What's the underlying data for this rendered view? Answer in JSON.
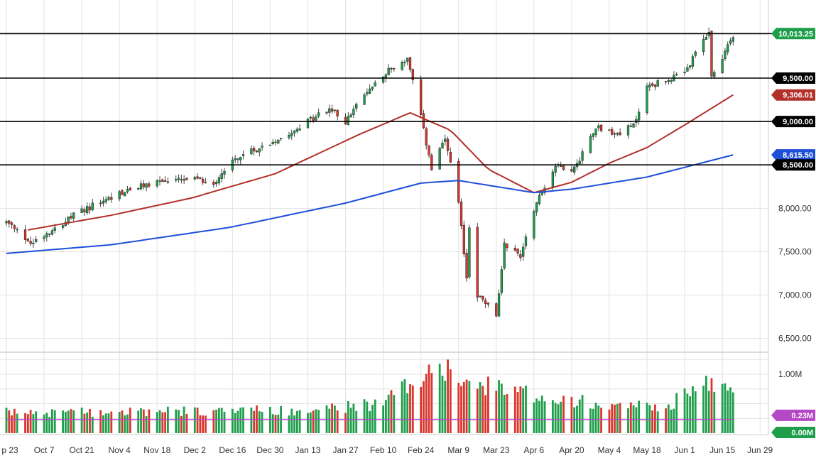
{
  "chart_data": {
    "type": "candlestick",
    "price_axis": {
      "range": [
        6350,
        10400
      ],
      "ticks": [
        {
          "value": 8000,
          "label": "8,000.00"
        },
        {
          "value": 7500,
          "label": "7,500.00"
        },
        {
          "value": 7000,
          "label": "7,000.00"
        },
        {
          "value": 6500,
          "label": "6,500.00"
        }
      ]
    },
    "volume_axis": {
      "range": [
        0,
        1.35
      ],
      "ticks": [
        {
          "value": 1.0,
          "label": "1.00M"
        }
      ]
    },
    "x_ticks": [
      "p 23",
      "Oct 7",
      "Oct 21",
      "Nov 4",
      "Nov 18",
      "Dec 2",
      "Dec 16",
      "Dec 30",
      "Jan 13",
      "Jan 27",
      "Feb 10",
      "Feb 24",
      "Mar 9",
      "Mar 23",
      "Apr 6",
      "Apr 20",
      "May 4",
      "May 18",
      "Jun 1",
      "Jun 15",
      "Jun 29"
    ],
    "horizontal_lines": [
      10013.25,
      9500,
      9000,
      8500
    ],
    "price_tags": [
      {
        "value": 10013.25,
        "label": "10,013.25",
        "color": "#1e9e4a"
      },
      {
        "value": 9500,
        "label": "9,500.00",
        "color": "#000000"
      },
      {
        "value": 9306.01,
        "label": "9,306.01",
        "color": "#b23028"
      },
      {
        "value": 9000,
        "label": "9,000.00",
        "color": "#000000"
      },
      {
        "value": 8615.5,
        "label": "8,615.50",
        "color": "#1d4fd8"
      },
      {
        "value": 8500,
        "label": "8,500.00",
        "color": "#000000"
      }
    ],
    "volume_tags": [
      {
        "value": 0.23,
        "label": "0.23M",
        "color": "#b548c6"
      },
      {
        "value": 0.0,
        "label": "0.00M",
        "color": "#1e9e4a"
      }
    ],
    "anchors": [
      {
        "d": "2019-09-23",
        "c": 7840
      },
      {
        "d": "2019-10-02",
        "c": 7600
      },
      {
        "d": "2019-10-07",
        "c": 7700
      },
      {
        "d": "2019-10-21",
        "c": 7970
      },
      {
        "d": "2019-11-04",
        "c": 8170
      },
      {
        "d": "2019-11-18",
        "c": 8310
      },
      {
        "d": "2019-12-02",
        "c": 8330
      },
      {
        "d": "2019-12-09",
        "c": 8290
      },
      {
        "d": "2019-12-16",
        "c": 8560
      },
      {
        "d": "2019-12-30",
        "c": 8750
      },
      {
        "d": "2020-01-13",
        "c": 9000
      },
      {
        "d": "2020-01-21",
        "c": 9150
      },
      {
        "d": "2020-01-27",
        "c": 9000
      },
      {
        "d": "2020-02-03",
        "c": 9300
      },
      {
        "d": "2020-02-10",
        "c": 9550
      },
      {
        "d": "2020-02-19",
        "c": 9720
      },
      {
        "d": "2020-02-24",
        "c": 9050
      },
      {
        "d": "2020-02-28",
        "c": 8450
      },
      {
        "d": "2020-03-04",
        "c": 8800
      },
      {
        "d": "2020-03-09",
        "c": 8050
      },
      {
        "d": "2020-03-12",
        "c": 7200
      },
      {
        "d": "2020-03-13",
        "c": 7800
      },
      {
        "d": "2020-03-16",
        "c": 7000
      },
      {
        "d": "2020-03-20",
        "c": 6880
      },
      {
        "d": "2020-03-23",
        "c": 6740
      },
      {
        "d": "2020-03-26",
        "c": 7600
      },
      {
        "d": "2020-04-01",
        "c": 7450
      },
      {
        "d": "2020-04-06",
        "c": 8000
      },
      {
        "d": "2020-04-14",
        "c": 8500
      },
      {
        "d": "2020-04-21",
        "c": 8450
      },
      {
        "d": "2020-04-29",
        "c": 8950
      },
      {
        "d": "2020-05-06",
        "c": 8850
      },
      {
        "d": "2020-05-13",
        "c": 8950
      },
      {
        "d": "2020-05-18",
        "c": 9400
      },
      {
        "d": "2020-06-01",
        "c": 9550
      },
      {
        "d": "2020-06-10",
        "c": 10050
      },
      {
        "d": "2020-06-11",
        "c": 9500
      },
      {
        "d": "2020-06-15",
        "c": 9750
      },
      {
        "d": "2020-06-19",
        "c": 10000
      }
    ],
    "ma_50": [
      {
        "d": "2019-10-01",
        "v": 7750
      },
      {
        "d": "2019-11-01",
        "v": 7920
      },
      {
        "d": "2019-12-01",
        "v": 8120
      },
      {
        "d": "2020-01-01",
        "v": 8400
      },
      {
        "d": "2020-02-01",
        "v": 8850
      },
      {
        "d": "2020-02-20",
        "v": 9100
      },
      {
        "d": "2020-03-06",
        "v": 8900
      },
      {
        "d": "2020-03-20",
        "v": 8450
      },
      {
        "d": "2020-04-06",
        "v": 8180
      },
      {
        "d": "2020-04-20",
        "v": 8300
      },
      {
        "d": "2020-05-04",
        "v": 8520
      },
      {
        "d": "2020-05-18",
        "v": 8700
      },
      {
        "d": "2020-06-01",
        "v": 8960
      },
      {
        "d": "2020-06-19",
        "v": 9306.01
      }
    ],
    "ma_200": [
      {
        "d": "2019-09-23",
        "v": 7480
      },
      {
        "d": "2019-11-01",
        "v": 7580
      },
      {
        "d": "2019-12-15",
        "v": 7780
      },
      {
        "d": "2020-01-27",
        "v": 8060
      },
      {
        "d": "2020-02-24",
        "v": 8290
      },
      {
        "d": "2020-03-09",
        "v": 8320
      },
      {
        "d": "2020-03-27",
        "v": 8230
      },
      {
        "d": "2020-04-06",
        "v": 8180
      },
      {
        "d": "2020-04-20",
        "v": 8220
      },
      {
        "d": "2020-05-18",
        "v": 8360
      },
      {
        "d": "2020-06-19",
        "v": 8615.5
      }
    ],
    "volume_profile": [
      {
        "d": "2019-09-23",
        "v": 0.36
      },
      {
        "d": "2020-01-15",
        "v": 0.4
      },
      {
        "d": "2020-02-10",
        "v": 0.52
      },
      {
        "d": "2020-02-28",
        "v": 1.18
      },
      {
        "d": "2020-03-10",
        "v": 0.95
      },
      {
        "d": "2020-03-23",
        "v": 0.78
      },
      {
        "d": "2020-04-20",
        "v": 0.58
      },
      {
        "d": "2020-05-25",
        "v": 0.45
      },
      {
        "d": "2020-06-10",
        "v": 0.92
      },
      {
        "d": "2020-06-19",
        "v": 0.72
      }
    ],
    "volume_ma": 0.23,
    "colors": {
      "up": "#1e9e4a",
      "down": "#d9362b",
      "ma50": "#b23028",
      "ma200": "#1d4fd8",
      "volume_ma": "#b548c6",
      "grid": "#e2e2e2"
    }
  }
}
